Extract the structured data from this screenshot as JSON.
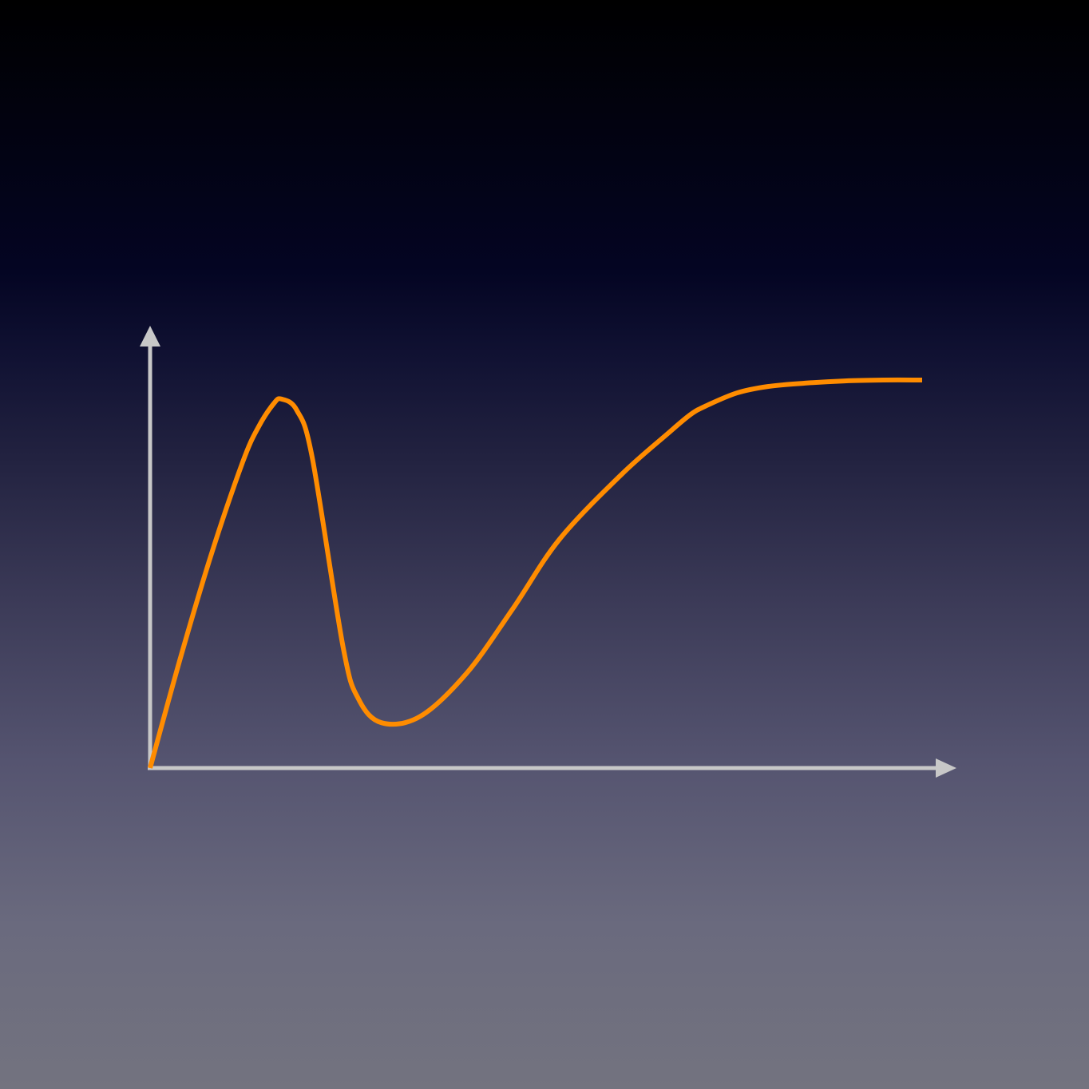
{
  "chart_data": {
    "type": "line",
    "title": "",
    "xlabel": "",
    "ylabel": "",
    "xlim": [
      0,
      100
    ],
    "ylim": [
      0,
      100
    ],
    "grid": false,
    "legend": "none",
    "series": [
      {
        "color": "#ff8c00",
        "x": [
          0,
          4,
          8,
          12,
          14,
          16,
          17,
          19,
          21,
          25,
          27,
          30,
          35,
          41,
          47,
          53,
          61,
          67,
          70,
          72,
          76,
          80,
          85,
          90,
          95,
          100
        ],
        "y": [
          0,
          26,
          50,
          71,
          79,
          84.5,
          85.6,
          83,
          72,
          28,
          16,
          10.5,
          12,
          22,
          37,
          53,
          68,
          77.5,
          82,
          84,
          87,
          88.5,
          89.3,
          89.8,
          90,
          90
        ]
      }
    ],
    "axis_color": "#c8c8c8"
  }
}
